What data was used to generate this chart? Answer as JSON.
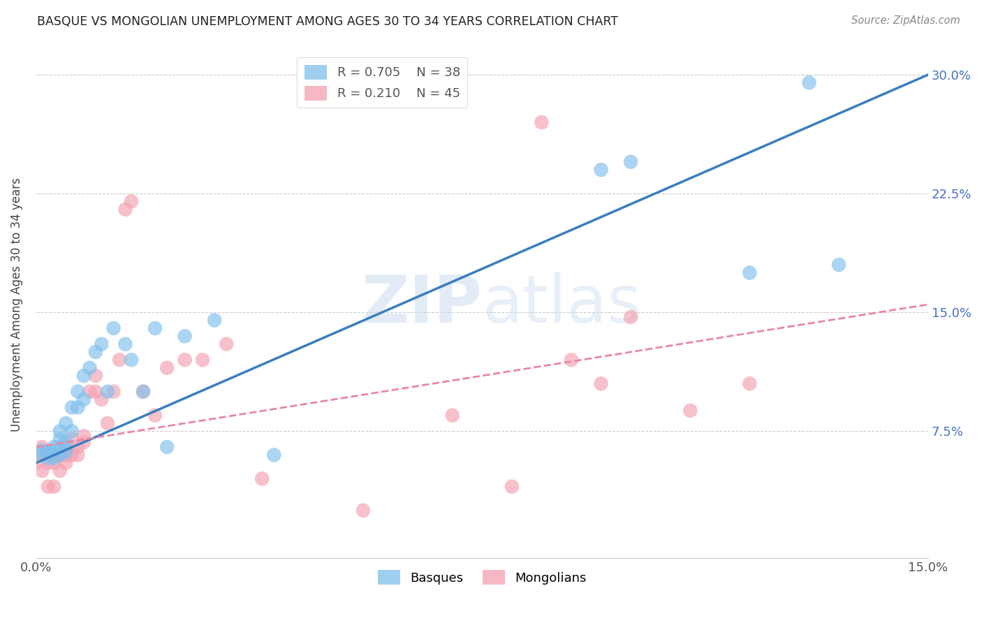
{
  "title": "BASQUE VS MONGOLIAN UNEMPLOYMENT AMONG AGES 30 TO 34 YEARS CORRELATION CHART",
  "source": "Source: ZipAtlas.com",
  "ylabel": "Unemployment Among Ages 30 to 34 years",
  "xlim": [
    0.0,
    0.15
  ],
  "ylim": [
    -0.005,
    0.315
  ],
  "xticks": [
    0.0,
    0.05,
    0.1,
    0.15
  ],
  "xtick_labels": [
    "0.0%",
    "",
    "",
    "15.0%"
  ],
  "ytick_labels": [
    "7.5%",
    "15.0%",
    "22.5%",
    "30.0%"
  ],
  "ytick_values": [
    0.075,
    0.15,
    0.225,
    0.3
  ],
  "grid_color": "#cccccc",
  "background_color": "#ffffff",
  "legend_r1": "R = 0.705",
  "legend_n1": "N = 38",
  "legend_r2": "R = 0.210",
  "legend_n2": "N = 45",
  "blue_color": "#7fbfec",
  "pink_color": "#f4a0b0",
  "line_blue": "#3a7ebf",
  "line_pink": "#e888a0",
  "basques_x": [
    0.001,
    0.001,
    0.002,
    0.002,
    0.003,
    0.003,
    0.003,
    0.004,
    0.004,
    0.004,
    0.004,
    0.005,
    0.005,
    0.005,
    0.006,
    0.006,
    0.007,
    0.007,
    0.008,
    0.008,
    0.009,
    0.01,
    0.011,
    0.012,
    0.013,
    0.015,
    0.016,
    0.018,
    0.02,
    0.022,
    0.025,
    0.03,
    0.04,
    0.095,
    0.1,
    0.12,
    0.13,
    0.135
  ],
  "basques_y": [
    0.06,
    0.063,
    0.058,
    0.062,
    0.058,
    0.062,
    0.065,
    0.06,
    0.065,
    0.07,
    0.075,
    0.062,
    0.068,
    0.08,
    0.075,
    0.09,
    0.09,
    0.1,
    0.095,
    0.11,
    0.115,
    0.125,
    0.13,
    0.1,
    0.14,
    0.13,
    0.12,
    0.1,
    0.14,
    0.065,
    0.135,
    0.145,
    0.06,
    0.24,
    0.245,
    0.175,
    0.295,
    0.18
  ],
  "mongolians_x": [
    0.0,
    0.001,
    0.001,
    0.001,
    0.002,
    0.002,
    0.003,
    0.003,
    0.003,
    0.004,
    0.004,
    0.005,
    0.005,
    0.005,
    0.006,
    0.006,
    0.007,
    0.007,
    0.008,
    0.008,
    0.009,
    0.01,
    0.01,
    0.011,
    0.012,
    0.013,
    0.014,
    0.015,
    0.016,
    0.018,
    0.02,
    0.022,
    0.025,
    0.028,
    0.032,
    0.038,
    0.055,
    0.07,
    0.08,
    0.085,
    0.09,
    0.095,
    0.1,
    0.11,
    0.12
  ],
  "mongolians_y": [
    0.055,
    0.05,
    0.06,
    0.065,
    0.04,
    0.055,
    0.04,
    0.055,
    0.06,
    0.05,
    0.06,
    0.055,
    0.06,
    0.065,
    0.06,
    0.07,
    0.06,
    0.065,
    0.068,
    0.072,
    0.1,
    0.1,
    0.11,
    0.095,
    0.08,
    0.1,
    0.12,
    0.215,
    0.22,
    0.1,
    0.085,
    0.115,
    0.12,
    0.12,
    0.13,
    0.045,
    0.025,
    0.085,
    0.04,
    0.27,
    0.12,
    0.105,
    0.147,
    0.088,
    0.105
  ]
}
